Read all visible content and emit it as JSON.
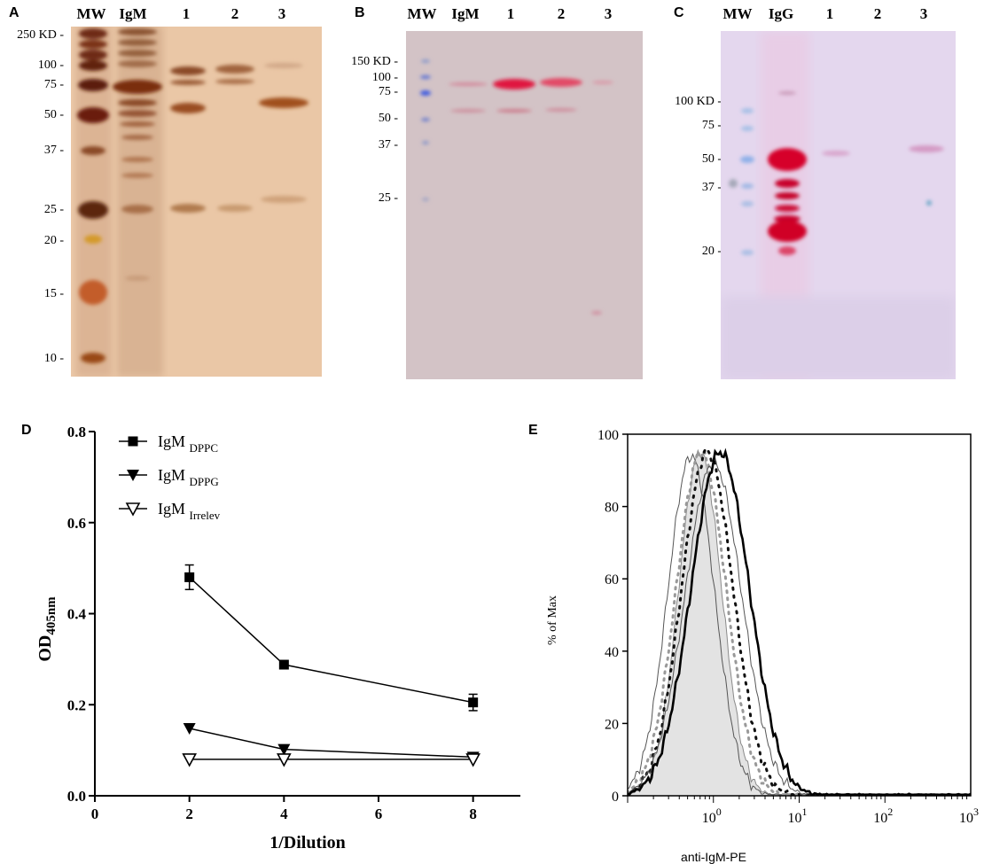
{
  "panels": {
    "A": {
      "letter": "A",
      "lanes": [
        "MW",
        "IgM",
        "1",
        "2",
        "3"
      ],
      "mw_markers": [
        "250 KD -",
        "100 -",
        "75 -",
        "50 -",
        "37 -",
        "25 -",
        "20 -",
        "15 -",
        "10 -"
      ]
    },
    "B": {
      "letter": "B",
      "lanes": [
        "MW",
        "IgM",
        "1",
        "2",
        "3"
      ],
      "mw_markers": [
        "150 KD -",
        "100 -",
        "75 -",
        "50 -",
        "37 -",
        "25 -"
      ]
    },
    "C": {
      "letter": "C",
      "lanes": [
        "MW",
        "IgG",
        "1",
        "2",
        "3"
      ],
      "mw_markers": [
        "100 KD -",
        "75 -",
        "50 -",
        "37 -",
        "20 -"
      ]
    },
    "D": {
      "letter": "D"
    },
    "E": {
      "letter": "E"
    }
  },
  "chart_data": [
    {
      "type": "line",
      "panel": "D",
      "xlabel": "1/Dilution",
      "ylabel_main": "OD",
      "ylabel_sub": "405nm",
      "xlim": [
        0,
        9
      ],
      "ylim": [
        0,
        0.8
      ],
      "xticks": [
        "0",
        "2",
        "4",
        "6",
        "8"
      ],
      "yticks": [
        "0.0",
        "0.2",
        "0.4",
        "0.6",
        "0.8"
      ],
      "x": [
        2,
        4,
        8
      ],
      "series": [
        {
          "name": "IgM",
          "sub": "DPPC",
          "marker": "square-filled",
          "values": [
            0.48,
            0.288,
            0.205
          ],
          "errors": [
            0.027,
            0.006,
            0.018
          ]
        },
        {
          "name": "IgM",
          "sub": "DPPG",
          "marker": "triangle-down-filled",
          "values": [
            0.148,
            0.102,
            0.085
          ],
          "errors": [
            0,
            0,
            0
          ]
        },
        {
          "name": "IgM",
          "sub": "Irrelev",
          "marker": "triangle-down-open",
          "values": [
            0.08,
            0.08,
            0.08
          ],
          "errors": [
            0,
            0,
            0
          ]
        }
      ],
      "legend": "top-left"
    },
    {
      "type": "line",
      "panel": "E",
      "xlabel": "anti-IgM-PE",
      "ylabel": "% of Max",
      "x_scale": "log",
      "xlim": [
        0.1,
        1000
      ],
      "ylim": [
        0,
        100
      ],
      "xticks": [
        {
          "base": "10",
          "exp": "0"
        },
        {
          "base": "10",
          "exp": "1"
        },
        {
          "base": "10",
          "exp": "2"
        },
        {
          "base": "10",
          "exp": "3"
        }
      ],
      "yticks": [
        "0",
        "20",
        "40",
        "60",
        "80",
        "100"
      ],
      "curves": [
        {
          "style": "filled-gray",
          "peak_x": 0.7,
          "peak_y": 95,
          "width": 0.25
        },
        {
          "style": "thin",
          "peak_x": 0.55,
          "peak_y": 94,
          "width": 0.27
        },
        {
          "style": "gray-dotted",
          "peak_x": 0.72,
          "peak_y": 95,
          "width": 0.29
        },
        {
          "style": "black-dotted",
          "peak_x": 0.85,
          "peak_y": 95,
          "width": 0.3
        },
        {
          "style": "thin",
          "peak_x": 1.0,
          "peak_y": 92,
          "width": 0.33
        },
        {
          "style": "thick",
          "peak_x": 1.2,
          "peak_y": 95,
          "width": 0.34
        }
      ]
    }
  ]
}
